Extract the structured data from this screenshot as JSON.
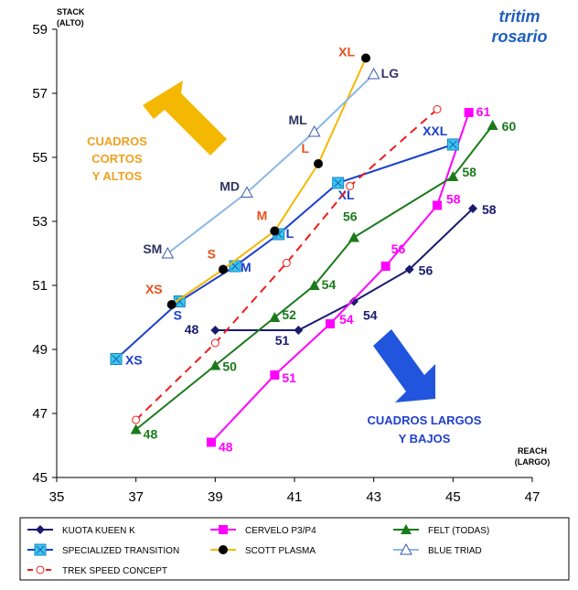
{
  "brand": {
    "line1": "tritim",
    "line2": "rosario",
    "color": "#1f5fbf"
  },
  "chart_data": {
    "type": "line",
    "ylabel": "STACK",
    "ylabel2": "(ALTO)",
    "xlabel": "REACH",
    "xlabel2": "(LARGO)",
    "xlim": [
      35,
      47
    ],
    "ylim": [
      45,
      59
    ],
    "x_ticks": [
      "35",
      "37",
      "39",
      "41",
      "43",
      "45",
      "47"
    ],
    "y_ticks": [
      "45",
      "47",
      "49",
      "51",
      "53",
      "55",
      "57",
      "59"
    ],
    "grid": false,
    "legend_position": "bottom",
    "annotations": {
      "short_tall": [
        "CUADROS",
        "CORTOS",
        "Y ALTOS"
      ],
      "long_low": [
        "CUADROS LARGOS",
        "Y BAJOS"
      ],
      "short_tall_color": "#f0a020",
      "long_low_color": "#1f3fcf",
      "arrow_up_color": "#f5b800",
      "arrow_down_color": "#2255dd"
    },
    "series": [
      {
        "name": "KUOTA KUEEN K",
        "color": "#1a1a6e",
        "marker": "diamond",
        "dashed": false,
        "label_color": "#1a1a6e",
        "points": [
          [
            39,
            49.6
          ],
          [
            41.1,
            49.6
          ],
          [
            42.5,
            50.5
          ],
          [
            43.9,
            51.5
          ],
          [
            45.5,
            53.4
          ]
        ],
        "labels": [
          "48",
          "51",
          "54",
          "56",
          "58"
        ]
      },
      {
        "name": "CERVELO P3/P4",
        "color": "#ff00ff",
        "marker": "square",
        "dashed": false,
        "label_color": "#ff00ff",
        "points": [
          [
            38.9,
            46.1
          ],
          [
            40.5,
            48.2
          ],
          [
            41.9,
            49.8
          ],
          [
            43.3,
            51.6
          ],
          [
            44.6,
            53.5
          ],
          [
            45.4,
            56.4
          ]
        ],
        "labels": [
          "48",
          "51",
          "54",
          "56",
          "58",
          "61"
        ]
      },
      {
        "name": "FELT (TODAS)",
        "color": "#1a7a1a",
        "marker": "triangle",
        "dashed": false,
        "label_color": "#1a7a1a",
        "points": [
          [
            37,
            46.5
          ],
          [
            39,
            48.5
          ],
          [
            40.5,
            50.0
          ],
          [
            41.5,
            51.0
          ],
          [
            42.5,
            52.5
          ],
          [
            45,
            54.4
          ],
          [
            46,
            56.0
          ]
        ],
        "labels": [
          "48",
          "50",
          "52",
          "54",
          "56",
          "58",
          "60"
        ]
      },
      {
        "name": "SPECIALIZED TRANSITION",
        "color": "#1a3fd0",
        "marker": "square-x",
        "dashed": false,
        "label_color": "#1a3fd0",
        "points": [
          [
            36.5,
            48.7
          ],
          [
            38.1,
            50.5
          ],
          [
            39.5,
            51.6
          ],
          [
            40.6,
            52.6
          ],
          [
            42.1,
            54.2
          ],
          [
            45,
            55.4
          ]
        ],
        "labels": [
          "XS",
          "S",
          "M",
          "L",
          "XL",
          "XXL"
        ]
      },
      {
        "name": "SCOTT PLASMA",
        "color": "#f5b800",
        "marker": "circle",
        "dashed": false,
        "label_color": "#e8501a",
        "points": [
          [
            37.9,
            50.4
          ],
          [
            39.2,
            51.5
          ],
          [
            40.5,
            52.7
          ],
          [
            41.6,
            54.8
          ],
          [
            42.8,
            58.1
          ]
        ],
        "labels": [
          "XS",
          "S",
          "M",
          "L",
          "XL"
        ]
      },
      {
        "name": "BLUE TRIAD",
        "color": "#8ab8e8",
        "marker": "triangle-open",
        "dashed": false,
        "label_color": "#333366",
        "points": [
          [
            37.8,
            52.0
          ],
          [
            39.8,
            53.9
          ],
          [
            41.5,
            55.8
          ],
          [
            43,
            57.6
          ]
        ],
        "labels": [
          "SM",
          "MD",
          "ML",
          "LG"
        ]
      },
      {
        "name": "TREK SPEED CONCEPT",
        "color": "#ee1c1c",
        "marker": "circle-open",
        "dashed": true,
        "label_color": "#ee1c1c",
        "points": [
          [
            37,
            46.8
          ],
          [
            39,
            49.2
          ],
          [
            40.8,
            51.7
          ],
          [
            42.4,
            54.1
          ],
          [
            44.6,
            56.5
          ]
        ],
        "labels": []
      }
    ]
  }
}
